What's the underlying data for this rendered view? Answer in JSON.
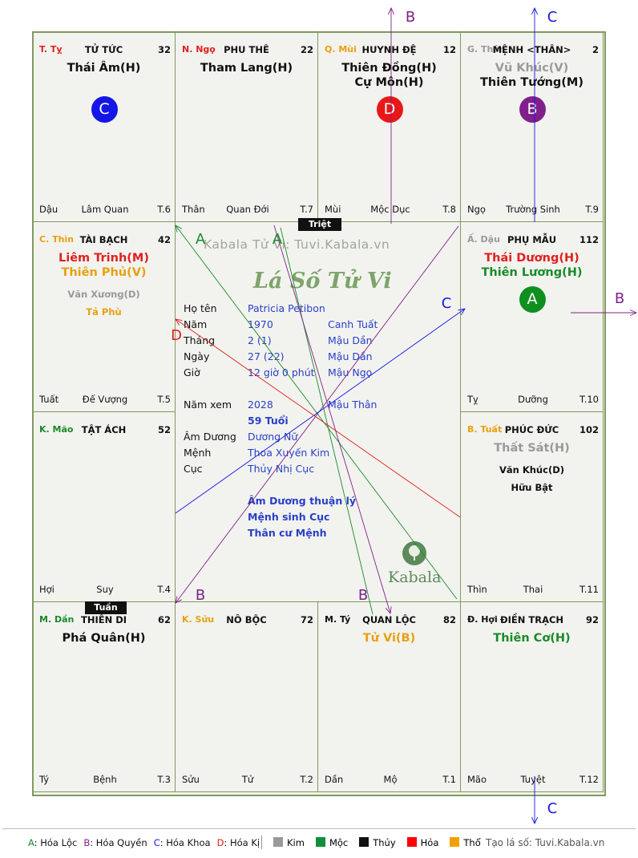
{
  "palaces": [
    {
      "id": "ty",
      "code": "T. Tỵ",
      "code_color": "#e02020",
      "name": "TỬ TỨC",
      "num": "32",
      "stars": [
        {
          "t": "Thái Âm(H)",
          "c": "#111"
        }
      ],
      "minor": [],
      "foot": [
        "Dậu",
        "Lâm Quan",
        "T.6"
      ],
      "circle": {
        "letter": "C",
        "color": "#1515e6"
      }
    },
    {
      "id": "ngo",
      "code": "N. Ngọ",
      "code_color": "#e02020",
      "name": "PHU THÊ",
      "num": "22",
      "stars": [
        {
          "t": "Tham Lang(H)",
          "c": "#111"
        }
      ],
      "minor": [],
      "foot": [
        "Thân",
        "Quan Đới",
        "T.7"
      ],
      "circle": null
    },
    {
      "id": "mui",
      "code": "Q. Mùi",
      "code_color": "#e8a010",
      "name": "HUYNH ĐỆ",
      "num": "12",
      "stars": [
        {
          "t": "Thiên Đồng(H)",
          "c": "#111"
        },
        {
          "t": "Cự Môn(H)",
          "c": "#111"
        }
      ],
      "minor": [],
      "foot": [
        "Mùi",
        "Mộc Dục",
        "T.8"
      ],
      "circle": {
        "letter": "D",
        "color": "#e81818"
      }
    },
    {
      "id": "than",
      "code": "G. Thân",
      "code_color": "#9a9a9a",
      "name": "MỆNH <THÂN>",
      "num": "2",
      "stars": [
        {
          "t": "Vũ Khúc(V)",
          "c": "#9a9a9a"
        },
        {
          "t": "Thiên Tướng(M)",
          "c": "#111"
        }
      ],
      "minor": [],
      "foot": [
        "Ngọ",
        "Trường Sinh",
        "T.9"
      ],
      "circle": {
        "letter": "B",
        "color": "#80208a"
      }
    },
    {
      "id": "thin",
      "code": "C. Thìn",
      "code_color": "#e8a010",
      "name": "TÀI BẠCH",
      "num": "42",
      "stars": [
        {
          "t": "Liêm Trinh(M)",
          "c": "#e02020"
        },
        {
          "t": "Thiên Phủ(V)",
          "c": "#e8a010"
        }
      ],
      "minor": [
        {
          "t": "Văn Xương(D)",
          "c": "#9a9a9a"
        },
        {
          "t": "Tả Phù",
          "c": "#e8a010"
        }
      ],
      "foot": [
        "Tuất",
        "Đế Vượng",
        "T.5"
      ],
      "circle": null
    },
    {
      "id": "dau",
      "code": "Ấ. Dậu",
      "code_color": "#9a9a9a",
      "name": "PHỤ MẪU",
      "num": "112",
      "stars": [
        {
          "t": "Thái Dương(H)",
          "c": "#e02020"
        },
        {
          "t": "Thiên Lương(H)",
          "c": "#1a8a2a"
        }
      ],
      "minor": [],
      "foot": [
        "Tỵ",
        "Dưỡng",
        "T.10"
      ],
      "circle": {
        "letter": "A",
        "color": "#0f8f20"
      }
    },
    {
      "id": "mao",
      "code": "K. Mão",
      "code_color": "#1a8a2a",
      "name": "TẬT ÁCH",
      "num": "52",
      "stars": [],
      "minor": [],
      "foot": [
        "Hợi",
        "Suy",
        "T.4"
      ],
      "circle": null
    },
    {
      "id": "tuat",
      "code": "B. Tuất",
      "code_color": "#e8a010",
      "name": "PHÚC ĐỨC",
      "num": "102",
      "stars": [
        {
          "t": "Thất Sát(H)",
          "c": "#9a9a9a"
        }
      ],
      "minor": [
        {
          "t": "Văn Khúc(D)",
          "c": "#111"
        },
        {
          "t": "Hữu Bật",
          "c": "#111"
        }
      ],
      "foot": [
        "Thìn",
        "Thai",
        "T.11"
      ],
      "circle": null
    },
    {
      "id": "dan",
      "code": "M. Dần",
      "code_color": "#1a8a2a",
      "name": "THIÊN DI",
      "num": "62",
      "stars": [
        {
          "t": "Phá Quân(H)",
          "c": "#111"
        }
      ],
      "minor": [],
      "foot": [
        "Tý",
        "Bệnh",
        "T.3"
      ],
      "circle": null
    },
    {
      "id": "suu",
      "code": "K. Sửu",
      "code_color": "#e8a010",
      "name": "NÔ BỘC",
      "num": "72",
      "stars": [],
      "minor": [],
      "foot": [
        "Sửu",
        "Tử",
        "T.2"
      ],
      "circle": null
    },
    {
      "id": "ty2",
      "code": "M. Tý",
      "code_color": "#111",
      "name": "QUAN LỘC",
      "num": "82",
      "stars": [
        {
          "t": "Tử Vi(B)",
          "c": "#e8a010"
        }
      ],
      "minor": [],
      "foot": [
        "Dần",
        "Mộ",
        "T.1"
      ],
      "circle": null
    },
    {
      "id": "hoi",
      "code": "Đ. Hợi",
      "code_color": "#111",
      "name": "ĐIỀN TRẠCH",
      "num": "92",
      "stars": [
        {
          "t": "Thiên Cơ(H)",
          "c": "#1a8a2a"
        }
      ],
      "minor": [],
      "foot": [
        "Mão",
        "Tuyệt",
        "T.12"
      ],
      "circle": null
    }
  ],
  "badges": {
    "triet": "Triệt",
    "tuan": "Tuần"
  },
  "center": {
    "watermark": "Kabala Tử Vi: Tuvi.Kabala.vn",
    "title": "Lá Số Tử Vi",
    "logo_text": "Kabala",
    "rows": [
      {
        "label": "Họ tên",
        "v1": "Patricia Petibon",
        "v2": ""
      },
      {
        "label": "Năm",
        "v1": "1970",
        "v2": "Canh Tuất"
      },
      {
        "label": "Tháng",
        "v1": "2  (1)",
        "v2": "Mậu Dần"
      },
      {
        "label": "Ngày",
        "v1": "27  (22)",
        "v2": "Mậu Dần"
      },
      {
        "label": "Giờ",
        "v1": "12 giờ 0 phút",
        "v2": "Mậu Ngọ"
      },
      {
        "label": "Năm xem",
        "v1": "2028",
        "v2": "Mậu Thân"
      },
      {
        "label": "",
        "v1": "59 Tuổi",
        "v2": ""
      },
      {
        "label": "Âm Dương",
        "v1": "Dương Nữ",
        "v2": ""
      },
      {
        "label": "Mệnh",
        "v1": "Thoa Xuyến Kim",
        "v2": ""
      },
      {
        "label": "Cục",
        "v1": "Thủy Nhị Cục",
        "v2": ""
      },
      {
        "label": "",
        "v1": "Âm Dương thuận lý",
        "v2": ""
      },
      {
        "label": "",
        "v1": "Mệnh sinh Cục",
        "v2": ""
      },
      {
        "label": "",
        "v1": "Thân cư Mệnh",
        "v2": ""
      }
    ]
  },
  "arrow_labels": {
    "a": "A",
    "b": "B",
    "c": "C",
    "d": "D"
  },
  "arrow_colors": {
    "a": "#1a8a2a",
    "b": "#80208a",
    "c": "#1515e6",
    "d": "#e02020"
  },
  "legend": {
    "hoa": [
      {
        "k": "A",
        "t": ": Hóa Lộc",
        "c": "#1a8a2a"
      },
      {
        "k": "B",
        "t": ": Hóa Quyền",
        "c": "#80208a"
      },
      {
        "k": "C",
        "t": ": Hóa Khoa",
        "c": "#1515e6"
      },
      {
        "k": "D",
        "t": ": Hóa Kị",
        "c": "#e02020"
      }
    ],
    "elements": [
      {
        "t": "Kim",
        "c": "#999999"
      },
      {
        "t": "Mộc",
        "c": "#0f8f3a"
      },
      {
        "t": "Thủy",
        "c": "#111111"
      },
      {
        "t": "Hỏa",
        "c": "#ff0000"
      },
      {
        "t": "Thổ",
        "c": "#f2a000"
      }
    ],
    "credit": "Tạo lá số: Tuvi.Kabala.vn"
  }
}
